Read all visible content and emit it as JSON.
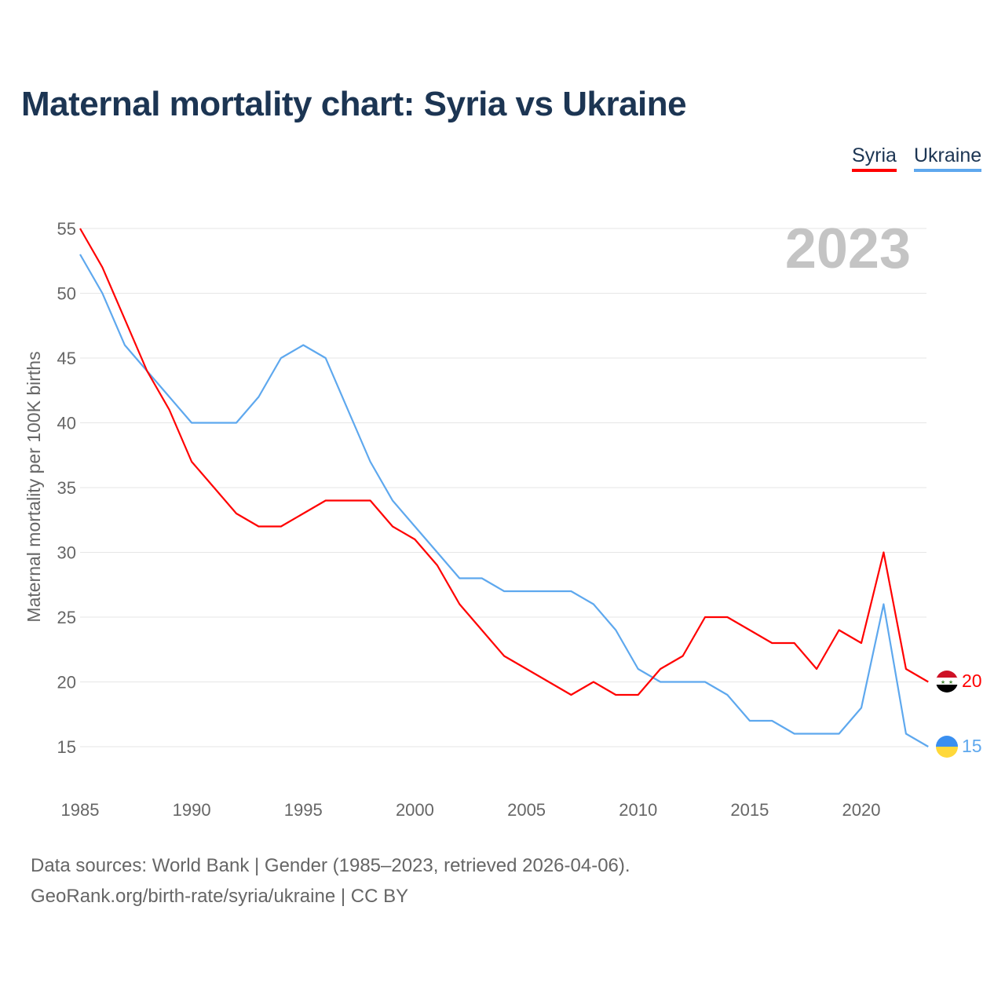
{
  "title": "Maternal mortality chart: Syria vs Ukraine",
  "year_label": "2023",
  "source_line1": "Data sources: World Bank | Gender (1985–2023, retrieved 2026-04-06).",
  "source_line2": "GeoRank.org/birth-rate/syria/ukraine | CC BY",
  "chart_data": {
    "type": "line",
    "title": "Maternal mortality chart: Syria vs Ukraine",
    "xlabel": "",
    "ylabel": "Maternal mortality per 100K births",
    "xlim": [
      1985,
      2023
    ],
    "ylim": [
      15,
      55
    ],
    "x_ticks": [
      1985,
      1990,
      1995,
      2000,
      2005,
      2010,
      2015,
      2020
    ],
    "y_ticks": [
      15,
      20,
      25,
      30,
      35,
      40,
      45,
      50,
      55
    ],
    "grid": true,
    "legend": "top-right",
    "x": [
      1985,
      1986,
      1987,
      1988,
      1989,
      1990,
      1991,
      1992,
      1993,
      1994,
      1995,
      1996,
      1997,
      1998,
      1999,
      2000,
      2001,
      2002,
      2003,
      2004,
      2005,
      2006,
      2007,
      2008,
      2009,
      2010,
      2011,
      2012,
      2013,
      2014,
      2015,
      2016,
      2017,
      2018,
      2019,
      2020,
      2021,
      2022,
      2023
    ],
    "series": [
      {
        "name": "Syria",
        "color": "#ff0000",
        "end_label": "20",
        "values": [
          55,
          52,
          48,
          44,
          41,
          37,
          35,
          33,
          32,
          32,
          33,
          34,
          34,
          34,
          32,
          31,
          29,
          26,
          24,
          22,
          21,
          20,
          19,
          20,
          19,
          19,
          21,
          22,
          25,
          25,
          24,
          23,
          23,
          21,
          24,
          23,
          30,
          21,
          20
        ]
      },
      {
        "name": "Ukraine",
        "color": "#5ea8ee",
        "end_label": "15",
        "values": [
          53,
          50,
          46,
          44,
          42,
          40,
          40,
          40,
          42,
          45,
          46,
          45,
          41,
          37,
          34,
          32,
          30,
          28,
          28,
          27,
          27,
          27,
          27,
          26,
          24,
          21,
          20,
          20,
          20,
          19,
          17,
          17,
          16,
          16,
          16,
          18,
          26,
          16,
          15
        ]
      }
    ]
  }
}
